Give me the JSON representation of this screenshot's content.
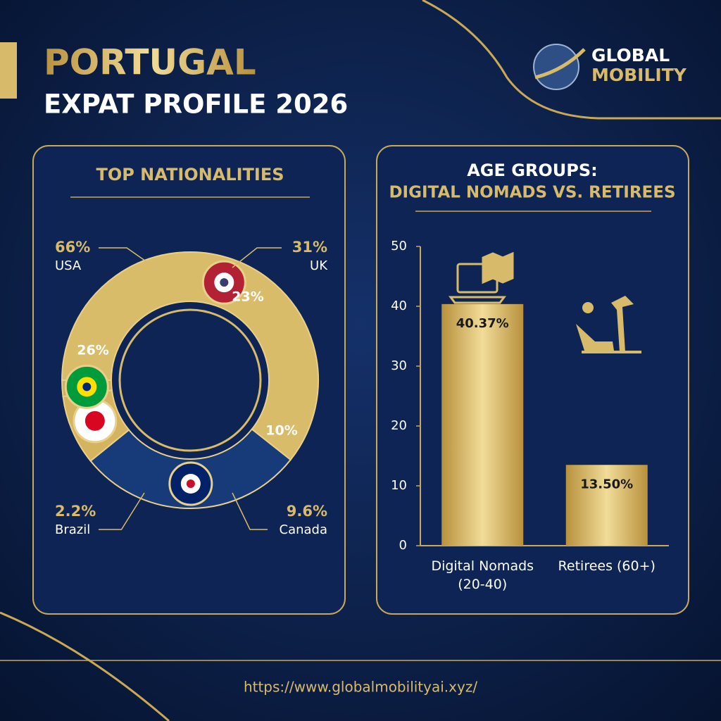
{
  "header": {
    "title": "PORTUGAL",
    "subtitle": "EXPAT PROFILE 2026",
    "logo_line1": "GLOBAL",
    "logo_line2": "MOBILITY"
  },
  "chart_data": [
    {
      "type": "pie",
      "title": "TOP NATIONALITIES",
      "categories": [
        "USA",
        "UK",
        "Canada",
        "Brazil"
      ],
      "values": [
        66,
        31,
        9.6,
        2.2
      ],
      "value_labels": [
        "66%",
        "31%",
        "9.6%",
        "2.2%"
      ],
      "colors": [
        "#d9bc6a",
        "#173a78",
        "#d4b45e",
        "#cfae58"
      ],
      "annotations": [
        "23%",
        "26%",
        "10%"
      ]
    },
    {
      "type": "bar",
      "title": "AGE GROUPS:",
      "subtitle": "DIGITAL NOMADS VS. RETIREES",
      "categories": [
        "Digital Nomads (20-40)",
        "Retirees (60+)"
      ],
      "values": [
        40.37,
        13.5
      ],
      "value_labels": [
        "40.37%",
        "13.50%"
      ],
      "color": "#dcc278",
      "ylim": [
        0,
        50
      ],
      "yticks": [
        0,
        10,
        20,
        30,
        40,
        50
      ]
    }
  ],
  "footer": {
    "url": "https://www.globalmobilityai.xyz/"
  }
}
